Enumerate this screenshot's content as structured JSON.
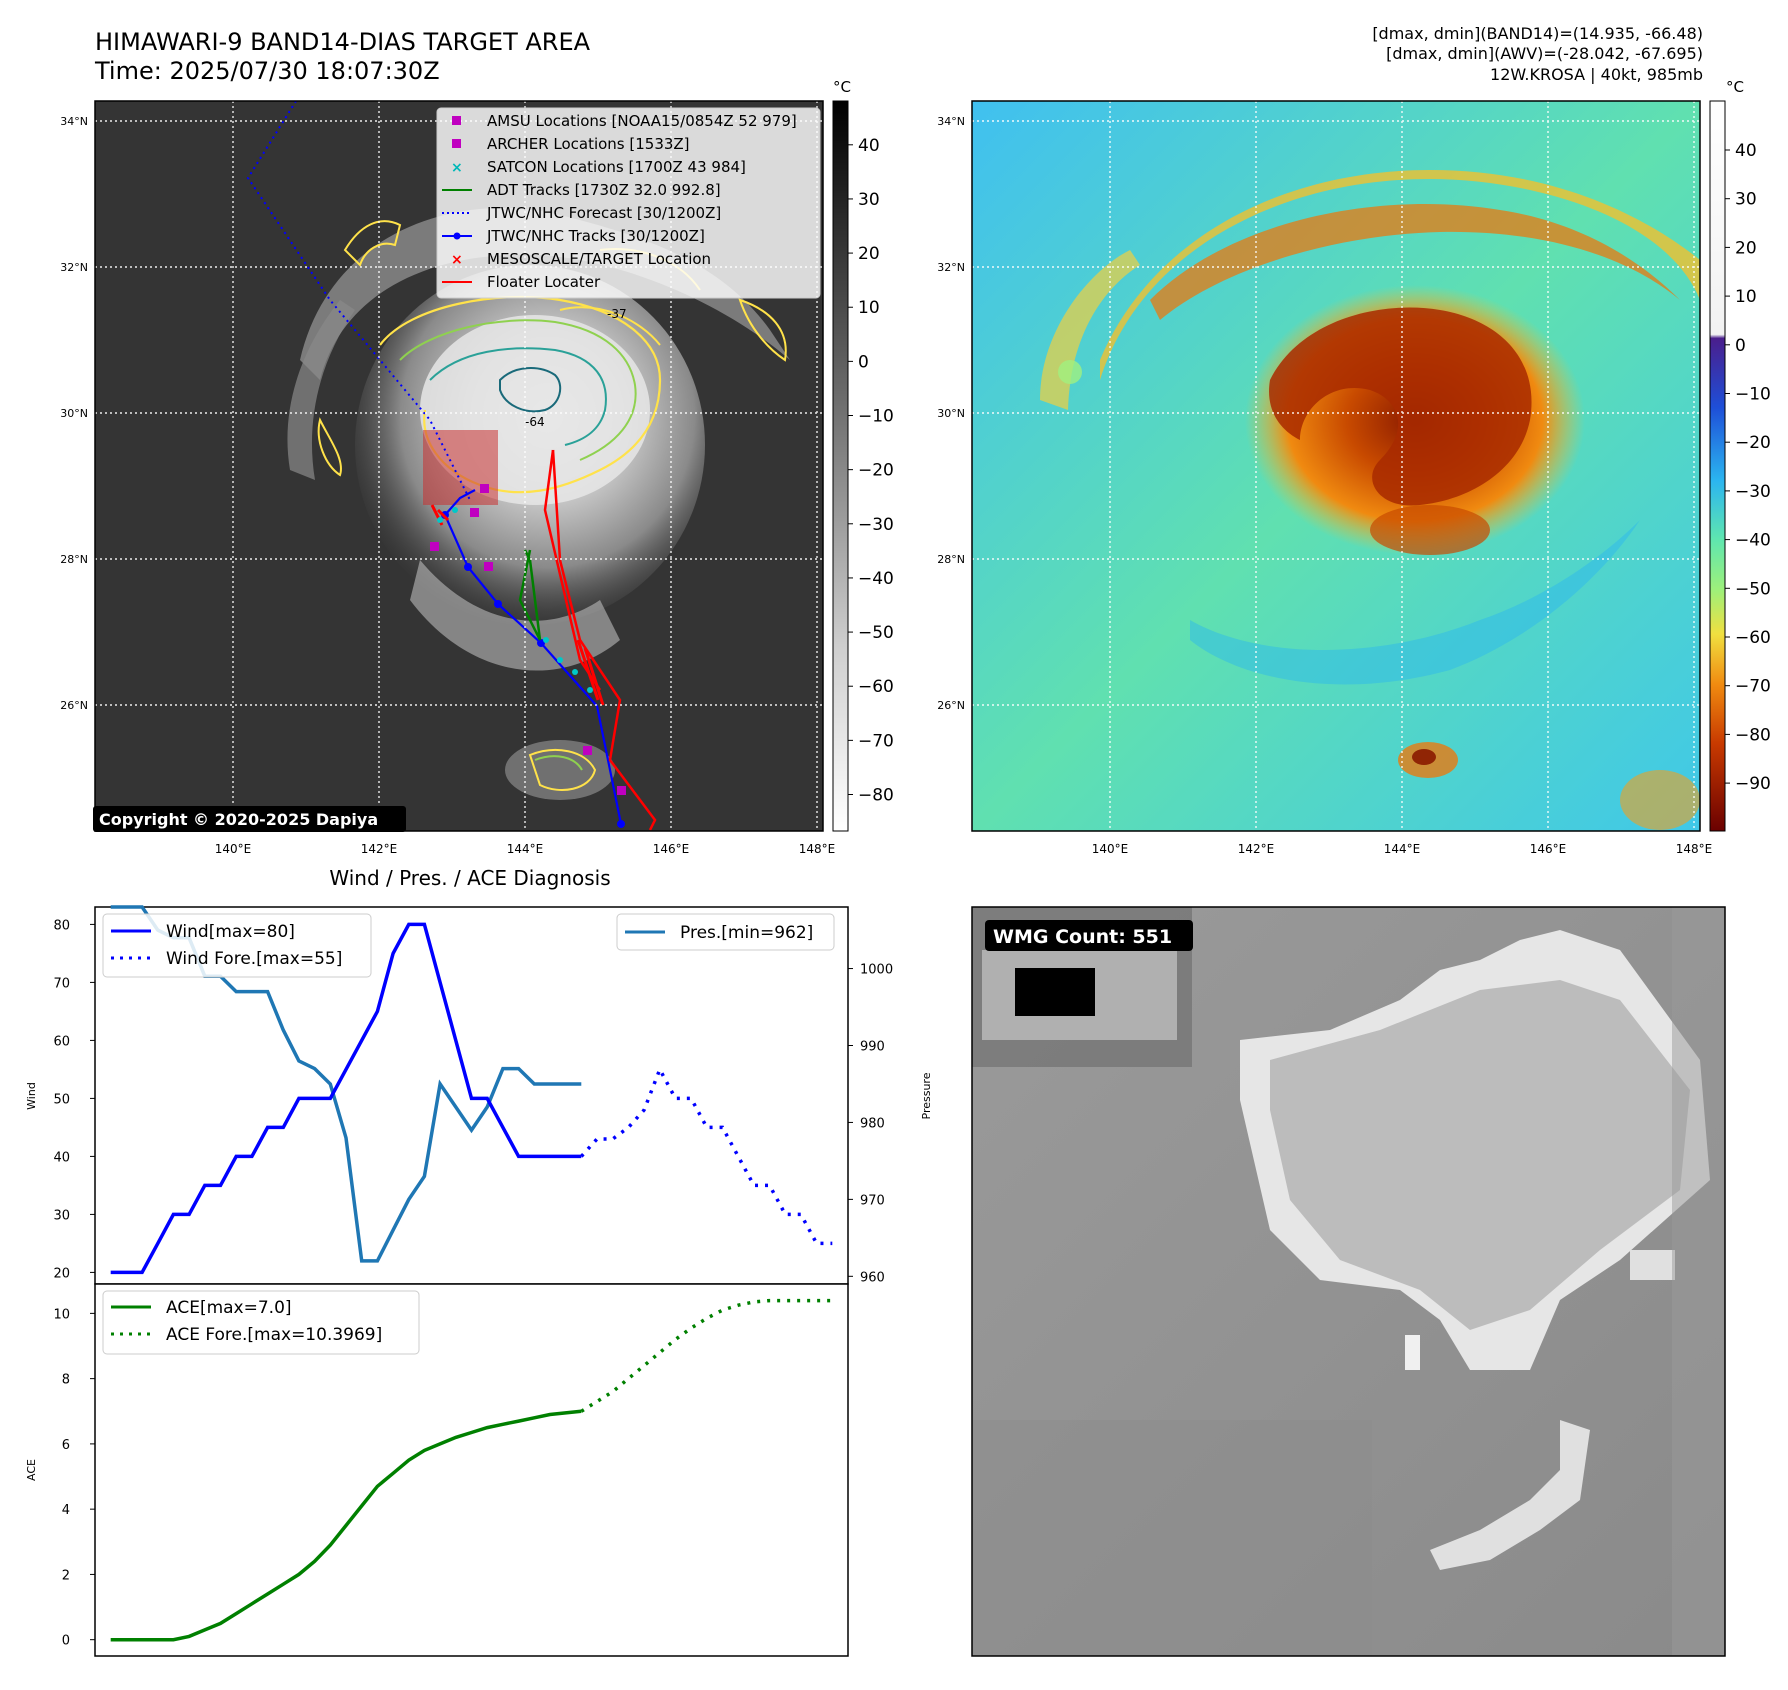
{
  "header": {
    "title_line1": "HIMAWARI-9 BAND14-DIAS TARGET AREA",
    "title_line2": "Time: 2025/07/30 18:07:30Z",
    "info_line1": "[dmax, dmin](BAND14)=(14.935, -66.48)",
    "info_line2": "[dmax, dmin](AWV)=(-28.042, -67.695)",
    "info_line3": "12W.KROSA | 40kt, 985mb"
  },
  "map": {
    "lat_labels": [
      "34°N",
      "32°N",
      "30°N",
      "28°N",
      "26°N"
    ],
    "lon_labels": [
      "140°E",
      "142°E",
      "144°E",
      "146°E",
      "148°E"
    ],
    "copyright": "Copyright © 2020-2025 Dapiya",
    "contour_labels": [
      "-37",
      "-64"
    ],
    "colors": {
      "contour_yellow": "#ffe24a",
      "contour_green": "#8fd14f",
      "contour_teal": "#2aa198",
      "contour_dark": "#1a6a7a"
    }
  },
  "colorbar_gray": {
    "unit": "°C",
    "ticks": [
      "40",
      "30",
      "20",
      "10",
      "0",
      "−10",
      "−20",
      "−30",
      "−40",
      "−50",
      "−60",
      "−70",
      "−80"
    ]
  },
  "colorbar_color": {
    "unit": "°C",
    "ticks": [
      "40",
      "30",
      "20",
      "10",
      "0",
      "−10",
      "−20",
      "−30",
      "−40",
      "−50",
      "−60",
      "−70",
      "−80",
      "−90"
    ]
  },
  "legend": {
    "items": [
      {
        "label": "AMSU Locations [NOAA15/0854Z 52 979]",
        "color": "#c000c0",
        "marker": "square"
      },
      {
        "label": "ARCHER Locations [1533Z]",
        "color": "#c000c0",
        "marker": "square"
      },
      {
        "label": "SATCON Locations [1700Z 43 984]",
        "color": "#00b8b8",
        "marker": "x"
      },
      {
        "label": "ADT Tracks [1730Z 32.0 992.8]",
        "color": "#008000",
        "marker": "line"
      },
      {
        "label": "JTWC/NHC Forecast [30/1200Z]",
        "color": "#0000ff",
        "marker": "dotted"
      },
      {
        "label": "JTWC/NHC Tracks [30/1200Z]",
        "color": "#0000ff",
        "marker": "line-dot"
      },
      {
        "label": "MESOSCALE/TARGET Location",
        "color": "#ff0000",
        "marker": "x"
      },
      {
        "label": "Floater Locater",
        "color": "#ff0000",
        "marker": "line"
      }
    ]
  },
  "wind_panel": {
    "title": "Wind / Pres. / ACE Diagnosis",
    "ylabel_left": "Wind",
    "ylabel_right": "Pressure",
    "legend_wind": "Wind[max=80]",
    "legend_wind_fore": "Wind Fore.[max=55]",
    "legend_pres": "Pres.[min=962]",
    "yticks_left": [
      "80",
      "70",
      "60",
      "50",
      "40",
      "30",
      "20"
    ],
    "yticks_right": [
      "1000",
      "990",
      "980",
      "970",
      "960"
    ]
  },
  "ace_panel": {
    "ylabel": "ACE",
    "legend_ace": "ACE[max=7.0]",
    "legend_ace_fore": "ACE Fore.[max=10.3969]",
    "yticks": [
      "10",
      "8",
      "6",
      "4",
      "2",
      "0"
    ]
  },
  "wmg_panel": {
    "label": "WMG Count: 551"
  },
  "chart_data": [
    {
      "type": "line",
      "name": "wind",
      "ylim": [
        18,
        83
      ],
      "wind": [
        [
          0,
          20
        ],
        [
          1,
          20
        ],
        [
          2,
          20
        ],
        [
          3,
          25
        ],
        [
          4,
          30
        ],
        [
          5,
          30
        ],
        [
          6,
          35
        ],
        [
          7,
          35
        ],
        [
          8,
          40
        ],
        [
          9,
          40
        ],
        [
          10,
          45
        ],
        [
          11,
          45
        ],
        [
          12,
          50
        ],
        [
          13,
          50
        ],
        [
          14,
          50
        ],
        [
          15,
          55
        ],
        [
          16,
          60
        ],
        [
          17,
          65
        ],
        [
          18,
          75
        ],
        [
          19,
          80
        ],
        [
          20,
          80
        ],
        [
          21,
          70
        ],
        [
          22,
          60
        ],
        [
          23,
          50
        ],
        [
          24,
          50
        ],
        [
          25,
          45
        ],
        [
          26,
          40
        ],
        [
          27,
          40
        ],
        [
          28,
          40
        ],
        [
          29,
          40
        ],
        [
          30,
          40
        ]
      ],
      "wind_fore": [
        [
          30,
          40
        ],
        [
          31,
          43
        ],
        [
          32,
          43
        ],
        [
          33,
          45
        ],
        [
          34,
          48
        ],
        [
          35,
          55
        ],
        [
          36,
          50
        ],
        [
          37,
          50
        ],
        [
          38,
          45
        ],
        [
          39,
          45
        ],
        [
          40,
          40
        ],
        [
          41,
          35
        ],
        [
          42,
          35
        ],
        [
          43,
          30
        ],
        [
          44,
          30
        ],
        [
          45,
          25
        ],
        [
          46,
          25
        ]
      ],
      "pres_ylim": [
        959,
        1008
      ],
      "pres": [
        [
          0,
          1008
        ],
        [
          1,
          1008
        ],
        [
          2,
          1008
        ],
        [
          3,
          1005
        ],
        [
          4,
          1004
        ],
        [
          5,
          1004
        ],
        [
          6,
          999
        ],
        [
          7,
          999
        ],
        [
          8,
          997
        ],
        [
          9,
          997
        ],
        [
          10,
          997
        ],
        [
          11,
          992
        ],
        [
          12,
          988
        ],
        [
          13,
          987
        ],
        [
          14,
          985
        ],
        [
          15,
          978
        ],
        [
          16,
          962
        ],
        [
          17,
          962
        ],
        [
          18,
          966
        ],
        [
          19,
          970
        ],
        [
          20,
          973
        ],
        [
          21,
          985
        ],
        [
          22,
          982
        ],
        [
          23,
          979
        ],
        [
          24,
          982
        ],
        [
          25,
          987
        ],
        [
          26,
          987
        ],
        [
          27,
          985
        ],
        [
          28,
          985
        ],
        [
          29,
          985
        ],
        [
          30,
          985
        ]
      ],
      "xlim": [
        -1,
        47
      ]
    },
    {
      "type": "line",
      "name": "ace",
      "ylim": [
        -0.5,
        10.9
      ],
      "ace": [
        [
          0,
          0
        ],
        [
          1,
          0
        ],
        [
          2,
          0
        ],
        [
          3,
          0
        ],
        [
          4,
          0
        ],
        [
          5,
          0.1
        ],
        [
          6,
          0.3
        ],
        [
          7,
          0.5
        ],
        [
          8,
          0.8
        ],
        [
          9,
          1.1
        ],
        [
          10,
          1.4
        ],
        [
          11,
          1.7
        ],
        [
          12,
          2.0
        ],
        [
          13,
          2.4
        ],
        [
          14,
          2.9
        ],
        [
          15,
          3.5
        ],
        [
          16,
          4.1
        ],
        [
          17,
          4.7
        ],
        [
          18,
          5.1
        ],
        [
          19,
          5.5
        ],
        [
          20,
          5.8
        ],
        [
          21,
          6.0
        ],
        [
          22,
          6.2
        ],
        [
          23,
          6.35
        ],
        [
          24,
          6.5
        ],
        [
          25,
          6.6
        ],
        [
          26,
          6.7
        ],
        [
          27,
          6.8
        ],
        [
          28,
          6.9
        ],
        [
          29,
          6.95
        ],
        [
          30,
          7.0
        ]
      ],
      "ace_fore": [
        [
          30,
          7.0
        ],
        [
          31,
          7.3
        ],
        [
          32,
          7.6
        ],
        [
          33,
          8.0
        ],
        [
          34,
          8.4
        ],
        [
          35,
          8.8
        ],
        [
          36,
          9.2
        ],
        [
          37,
          9.55
        ],
        [
          38,
          9.85
        ],
        [
          39,
          10.1
        ],
        [
          40,
          10.25
        ],
        [
          41,
          10.35
        ],
        [
          42,
          10.39
        ],
        [
          43,
          10.39
        ],
        [
          44,
          10.39
        ],
        [
          45,
          10.39
        ],
        [
          46,
          10.39
        ]
      ],
      "xlim": [
        -1,
        47
      ]
    }
  ]
}
